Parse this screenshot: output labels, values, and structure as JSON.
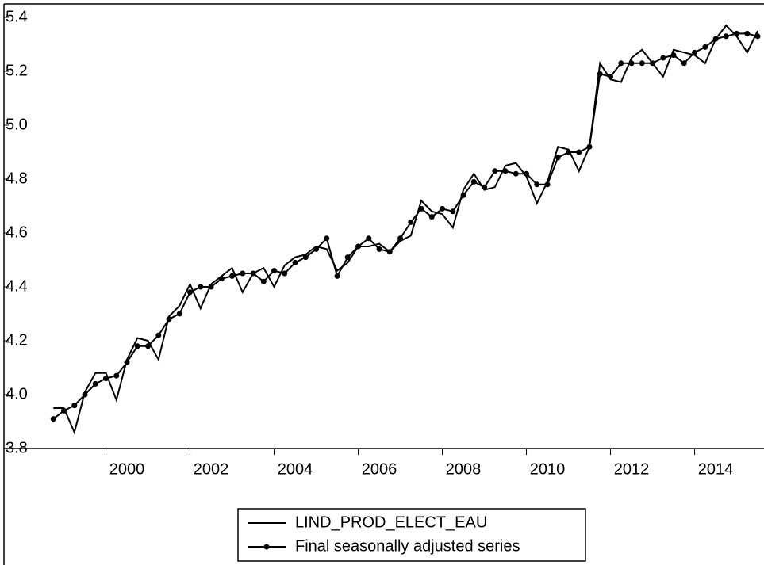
{
  "chart_data": {
    "type": "line",
    "x": [
      1998.75,
      1999,
      1999.25,
      1999.5,
      1999.75,
      2000,
      2000.25,
      2000.5,
      2000.75,
      2001,
      2001.25,
      2001.5,
      2001.75,
      2002,
      2002.25,
      2002.5,
      2002.75,
      2003,
      2003.25,
      2003.5,
      2003.75,
      2004,
      2004.25,
      2004.5,
      2004.75,
      2005,
      2005.25,
      2005.5,
      2005.75,
      2006,
      2006.25,
      2006.5,
      2006.75,
      2007,
      2007.25,
      2007.5,
      2007.75,
      2008,
      2008.25,
      2008.5,
      2008.75,
      2009,
      2009.25,
      2009.5,
      2009.75,
      2010,
      2010.25,
      2010.5,
      2010.75,
      2011,
      2011.25,
      2011.5,
      2011.75,
      2012,
      2012.25,
      2012.5,
      2012.75,
      2013,
      2013.25,
      2013.5,
      2013.75,
      2014,
      2014.25,
      2014.5,
      2014.75,
      2015,
      2015.25,
      2015.5
    ],
    "series": [
      {
        "name": "LIND_PROD_ELECT_EAU",
        "color": "#000000",
        "marker": false,
        "values": [
          3.95,
          3.95,
          3.86,
          4.01,
          4.08,
          4.08,
          3.98,
          4.13,
          4.21,
          4.2,
          4.13,
          4.29,
          4.33,
          4.41,
          4.32,
          4.41,
          4.44,
          4.47,
          4.38,
          4.45,
          4.47,
          4.4,
          4.48,
          4.51,
          4.52,
          4.55,
          4.54,
          4.46,
          4.49,
          4.55,
          4.55,
          4.56,
          4.53,
          4.57,
          4.59,
          4.72,
          4.68,
          4.67,
          4.62,
          4.76,
          4.82,
          4.76,
          4.77,
          4.85,
          4.86,
          4.81,
          4.71,
          4.79,
          4.92,
          4.91,
          4.83,
          4.92,
          5.23,
          5.17,
          5.16,
          5.25,
          5.28,
          5.23,
          5.18,
          5.28,
          5.27,
          5.26,
          5.23,
          5.32,
          5.37,
          5.33,
          5.27,
          5.35
        ]
      },
      {
        "name": "Final seasonally adjusted series",
        "color": "#000000",
        "marker": true,
        "values": [
          3.91,
          3.94,
          3.96,
          4.0,
          4.04,
          4.06,
          4.07,
          4.12,
          4.18,
          4.18,
          4.22,
          4.28,
          4.3,
          4.38,
          4.4,
          4.4,
          4.43,
          4.44,
          4.45,
          4.45,
          4.42,
          4.46,
          4.45,
          4.49,
          4.51,
          4.54,
          4.58,
          4.44,
          4.51,
          4.55,
          4.58,
          4.54,
          4.53,
          4.58,
          4.64,
          4.69,
          4.66,
          4.69,
          4.68,
          4.74,
          4.79,
          4.77,
          4.83,
          4.83,
          4.82,
          4.82,
          4.78,
          4.78,
          4.88,
          4.9,
          4.9,
          4.92,
          5.19,
          5.18,
          5.23,
          5.23,
          5.23,
          5.23,
          5.25,
          5.26,
          5.23,
          5.27,
          5.29,
          5.32,
          5.33,
          5.34,
          5.34,
          5.33
        ]
      }
    ],
    "xlim": [
      1997.575,
      2015.65
    ],
    "xticks": [
      2000,
      2002,
      2004,
      2006,
      2008,
      2010,
      2012,
      2014
    ],
    "ylim": [
      3.8,
      5.4
    ],
    "yticks": [
      {
        "value": 3.8,
        "label": "3.8"
      },
      {
        "value": 4.0,
        "label": "4.0"
      },
      {
        "value": 4.2,
        "label": "4.2"
      },
      {
        "value": 4.4,
        "label": "4.4"
      },
      {
        "value": 4.6,
        "label": "4.6"
      },
      {
        "value": 4.8,
        "label": "4.8"
      },
      {
        "value": 5.0,
        "label": "5.0"
      },
      {
        "value": 5.2,
        "label": "5.2"
      },
      {
        "value": 5.4,
        "label": "5.4"
      }
    ]
  }
}
